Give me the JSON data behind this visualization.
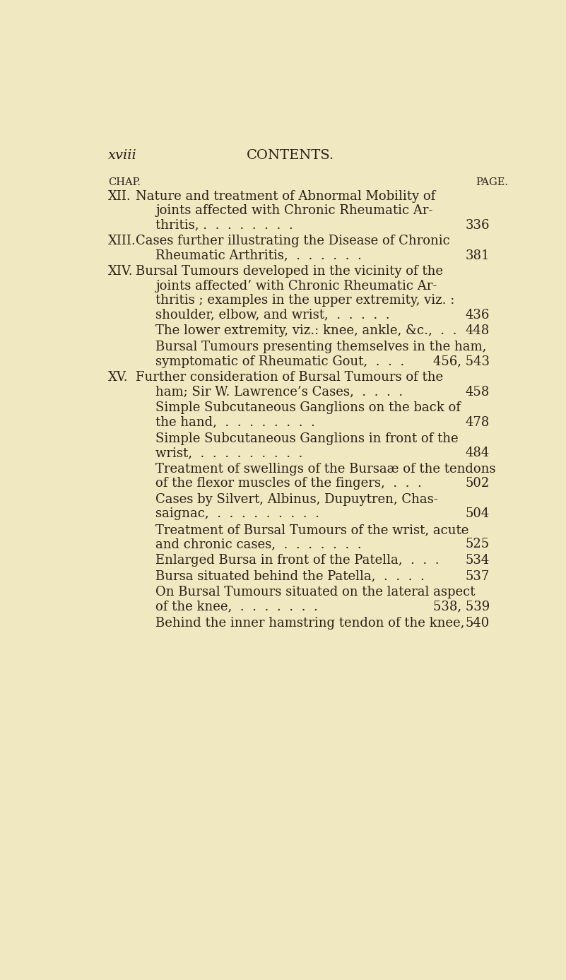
{
  "bg_color": "#f0e8c0",
  "text_color": "#2a2018",
  "header_left": "xviii",
  "header_center": "CONTENTS.",
  "chap_label": "CHAP.",
  "page_label": "PAGE.",
  "entries": [
    {
      "chap": "XII.",
      "lines": [
        {
          "text": "Nature and treatment of Abnormal Mobility of",
          "indent": 1
        },
        {
          "text": "joints affected with Chronic Rheumatic Ar-",
          "indent": 2
        },
        {
          "text": "thritis, .  .  .  .  .  .  .  .",
          "indent": 2,
          "page": "336"
        }
      ]
    },
    {
      "chap": "XIII.",
      "lines": [
        {
          "text": "Cases further illustrating the Disease of Chronic",
          "indent": 1
        },
        {
          "text": "Rheumatic Arthritis,  .  .  .  .  .  .",
          "indent": 2,
          "page": "381"
        }
      ]
    },
    {
      "chap": "XIV.",
      "lines": [
        {
          "text": "Bursal Tumours developed in the vicinity of the",
          "indent": 1
        },
        {
          "text": "joints affected’ with Chronic Rheumatic Ar-",
          "indent": 2
        },
        {
          "text": "thritis ; examples in the upper extremity, viz. :",
          "indent": 2
        },
        {
          "text": "shoulder, elbow, and wrist,  .  .  .  .  .",
          "indent": 2,
          "page": "436"
        }
      ]
    },
    {
      "chap": "",
      "lines": [
        {
          "text": "The lower extremity, viz.: knee, ankle, &c.,  .  .",
          "indent": 2,
          "page": "448"
        }
      ]
    },
    {
      "chap": "",
      "lines": [
        {
          "text": "Bursal Tumours presenting themselves in the ham,",
          "indent": 2
        },
        {
          "text": "symptomatic of Rheumatic Gout,  .  .  .",
          "indent": 2,
          "page": "456, 543"
        }
      ]
    },
    {
      "chap": "XV.",
      "lines": [
        {
          "text": "Further consideration of Bursal Tumours of the",
          "indent": 1
        },
        {
          "text": "ham; Sir W. Lawrence’s Cases,  .  .  .  .",
          "indent": 2,
          "page": "458"
        }
      ]
    },
    {
      "chap": "",
      "lines": [
        {
          "text": "Simple Subcutaneous Ganglions on the back of",
          "indent": 2
        },
        {
          "text": "the hand,  .  .  .  .  .  .  .  .",
          "indent": 2,
          "page": "478"
        }
      ]
    },
    {
      "chap": "",
      "lines": [
        {
          "text": "Simple Subcutaneous Ganglions in front of the",
          "indent": 2
        },
        {
          "text": "wrist,  .  .  .  .  .  .  .  .  .",
          "indent": 2,
          "page": "484"
        }
      ]
    },
    {
      "chap": "",
      "lines": [
        {
          "text": "Treatment of swellings of the Bursaæ of the tendons",
          "indent": 2
        },
        {
          "text": "of the flexor muscles of the fingers,  .  .  .",
          "indent": 2,
          "page": "502"
        }
      ]
    },
    {
      "chap": "",
      "lines": [
        {
          "text": "Cases by Silvert, Albinus, Dupuytren, Chas-",
          "indent": 2
        },
        {
          "text": "saignac,  .  .  .  .  .  .  .  .  .",
          "indent": 2,
          "page": "504"
        }
      ]
    },
    {
      "chap": "",
      "lines": [
        {
          "text": "Treatment of Bursal Tumours of the wrist, acute",
          "indent": 2
        },
        {
          "text": "and chronic cases,  .  .  .  .  .  .  .",
          "indent": 2,
          "page": "525"
        }
      ]
    },
    {
      "chap": "",
      "lines": [
        {
          "text": "Enlarged Bursa in front of the Patella,  .  .  .",
          "indent": 2,
          "page": "534"
        }
      ]
    },
    {
      "chap": "",
      "lines": [
        {
          "text": "Bursa situated behind the Patella,  .  .  .  .",
          "indent": 2,
          "page": "537"
        }
      ]
    },
    {
      "chap": "",
      "lines": [
        {
          "text": "On Bursal Tumours situated on the lateral aspect",
          "indent": 2
        },
        {
          "text": "of the knee,  .  .  .  .  .  .  .",
          "indent": 2,
          "page": "538, 539"
        }
      ]
    },
    {
      "chap": "",
      "lines": [
        {
          "text": "Behind the inner hamstring tendon of the knee,",
          "indent": 2,
          "page": "540"
        }
      ]
    }
  ]
}
